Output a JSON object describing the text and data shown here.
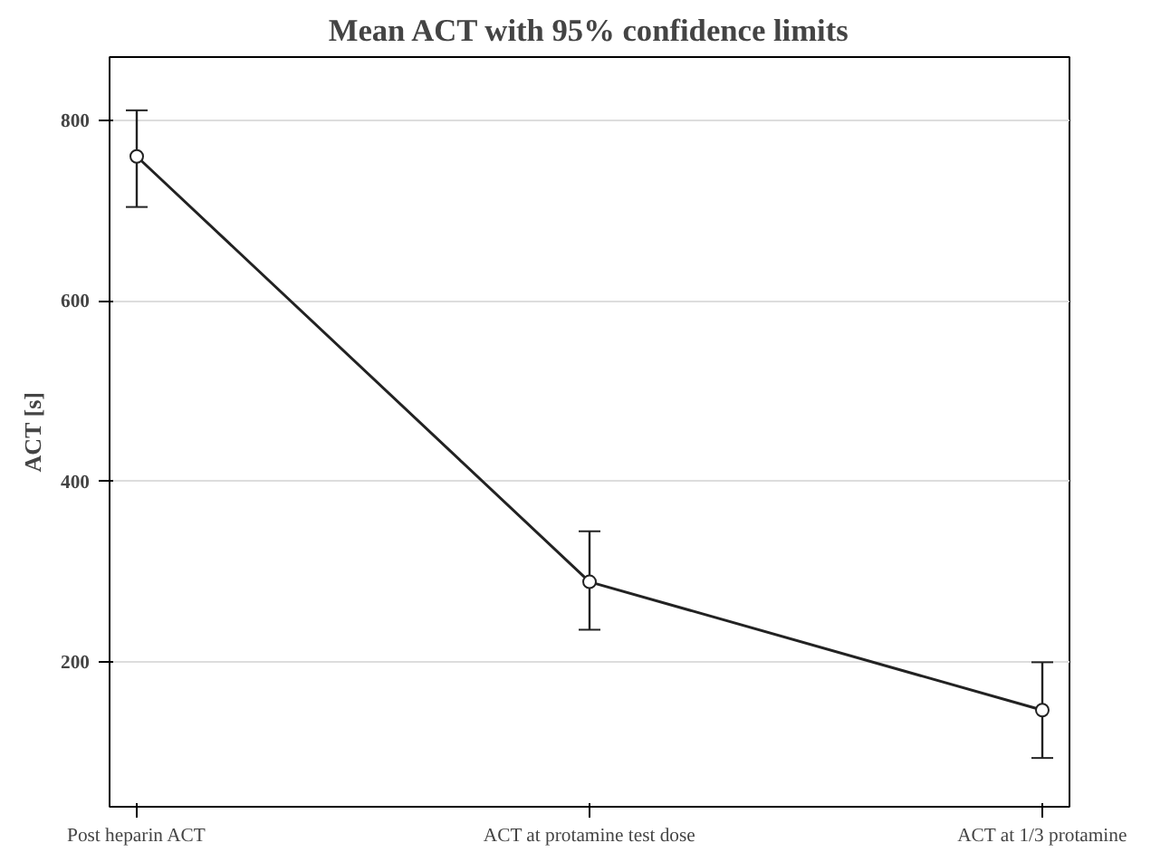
{
  "chart_data": {
    "type": "line",
    "title": "Mean ACT with 95% confidence limits",
    "ylabel": "ACT [s]",
    "categories": [
      "Post heparin ACT",
      "ACT at protamine test dose",
      "ACT at 1/3 protamine"
    ],
    "values": [
      760,
      289,
      147
    ],
    "errors": [
      [
        704,
        811
      ],
      [
        236,
        345
      ],
      [
        94,
        200
      ]
    ],
    "color": "#222222",
    "marker": "circle",
    "line_style": "solid",
    "grid": "y",
    "ylim": [
      40,
      870
    ],
    "yticks": [
      200,
      400,
      600,
      800
    ]
  }
}
